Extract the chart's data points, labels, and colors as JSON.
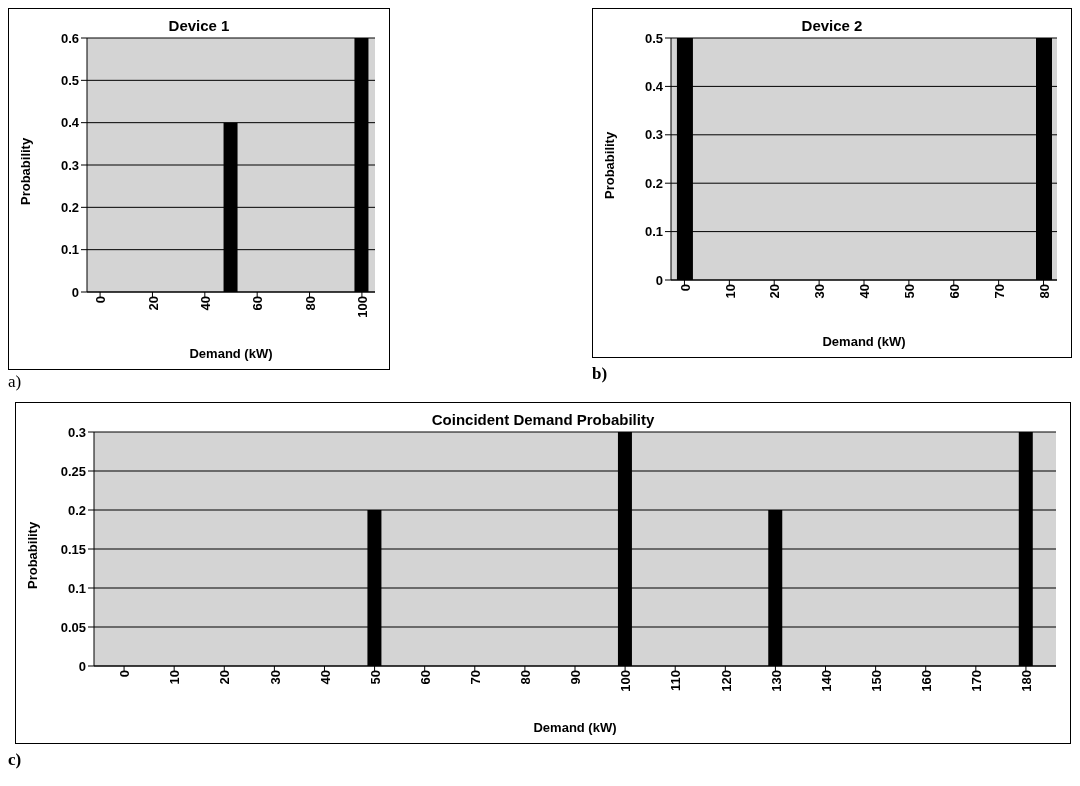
{
  "chart_data": [
    {
      "type": "bar",
      "title": "Device 1",
      "xlabel": "Demand (kW)",
      "ylabel": "Probability",
      "x": [
        50,
        100
      ],
      "values": [
        0.4,
        0.6
      ],
      "color": "#000000",
      "xlim": [
        -5,
        105
      ],
      "xticks": [
        0,
        20,
        40,
        60,
        80,
        100
      ],
      "ylim": [
        0,
        0.6
      ],
      "yticks": [
        0,
        0.1,
        0.2,
        0.3,
        0.4,
        0.5,
        0.6
      ],
      "grid": "y",
      "annotations": [
        "a)"
      ]
    },
    {
      "type": "bar",
      "title": "Device 2",
      "xlabel": "Demand (kW)",
      "ylabel": "Probability",
      "x": [
        0,
        80
      ],
      "values": [
        0.5,
        0.5
      ],
      "color": "#000000",
      "xlim": [
        -3,
        83
      ],
      "xticks": [
        0,
        10,
        20,
        30,
        40,
        50,
        60,
        70,
        80
      ],
      "ylim": [
        0,
        0.5
      ],
      "yticks": [
        0,
        0.1,
        0.2,
        0.3,
        0.4,
        0.5
      ],
      "grid": "y",
      "annotations": [
        "b)"
      ]
    },
    {
      "type": "bar",
      "title": "Coincident Demand Probability",
      "xlabel": "Demand (kW)",
      "ylabel": "Probability",
      "x": [
        50,
        100,
        130,
        180
      ],
      "values": [
        0.2,
        0.3,
        0.2,
        0.3
      ],
      "color": "#000000",
      "xlim": [
        -6,
        186
      ],
      "xticks": [
        0,
        10,
        20,
        30,
        40,
        50,
        60,
        70,
        80,
        90,
        100,
        110,
        120,
        130,
        140,
        150,
        160,
        170,
        180
      ],
      "ylim": [
        0,
        0.3
      ],
      "yticks": [
        0,
        0.05,
        0.1,
        0.15,
        0.2,
        0.25,
        0.3
      ],
      "grid": "y",
      "annotations": [
        "c)"
      ]
    }
  ]
}
